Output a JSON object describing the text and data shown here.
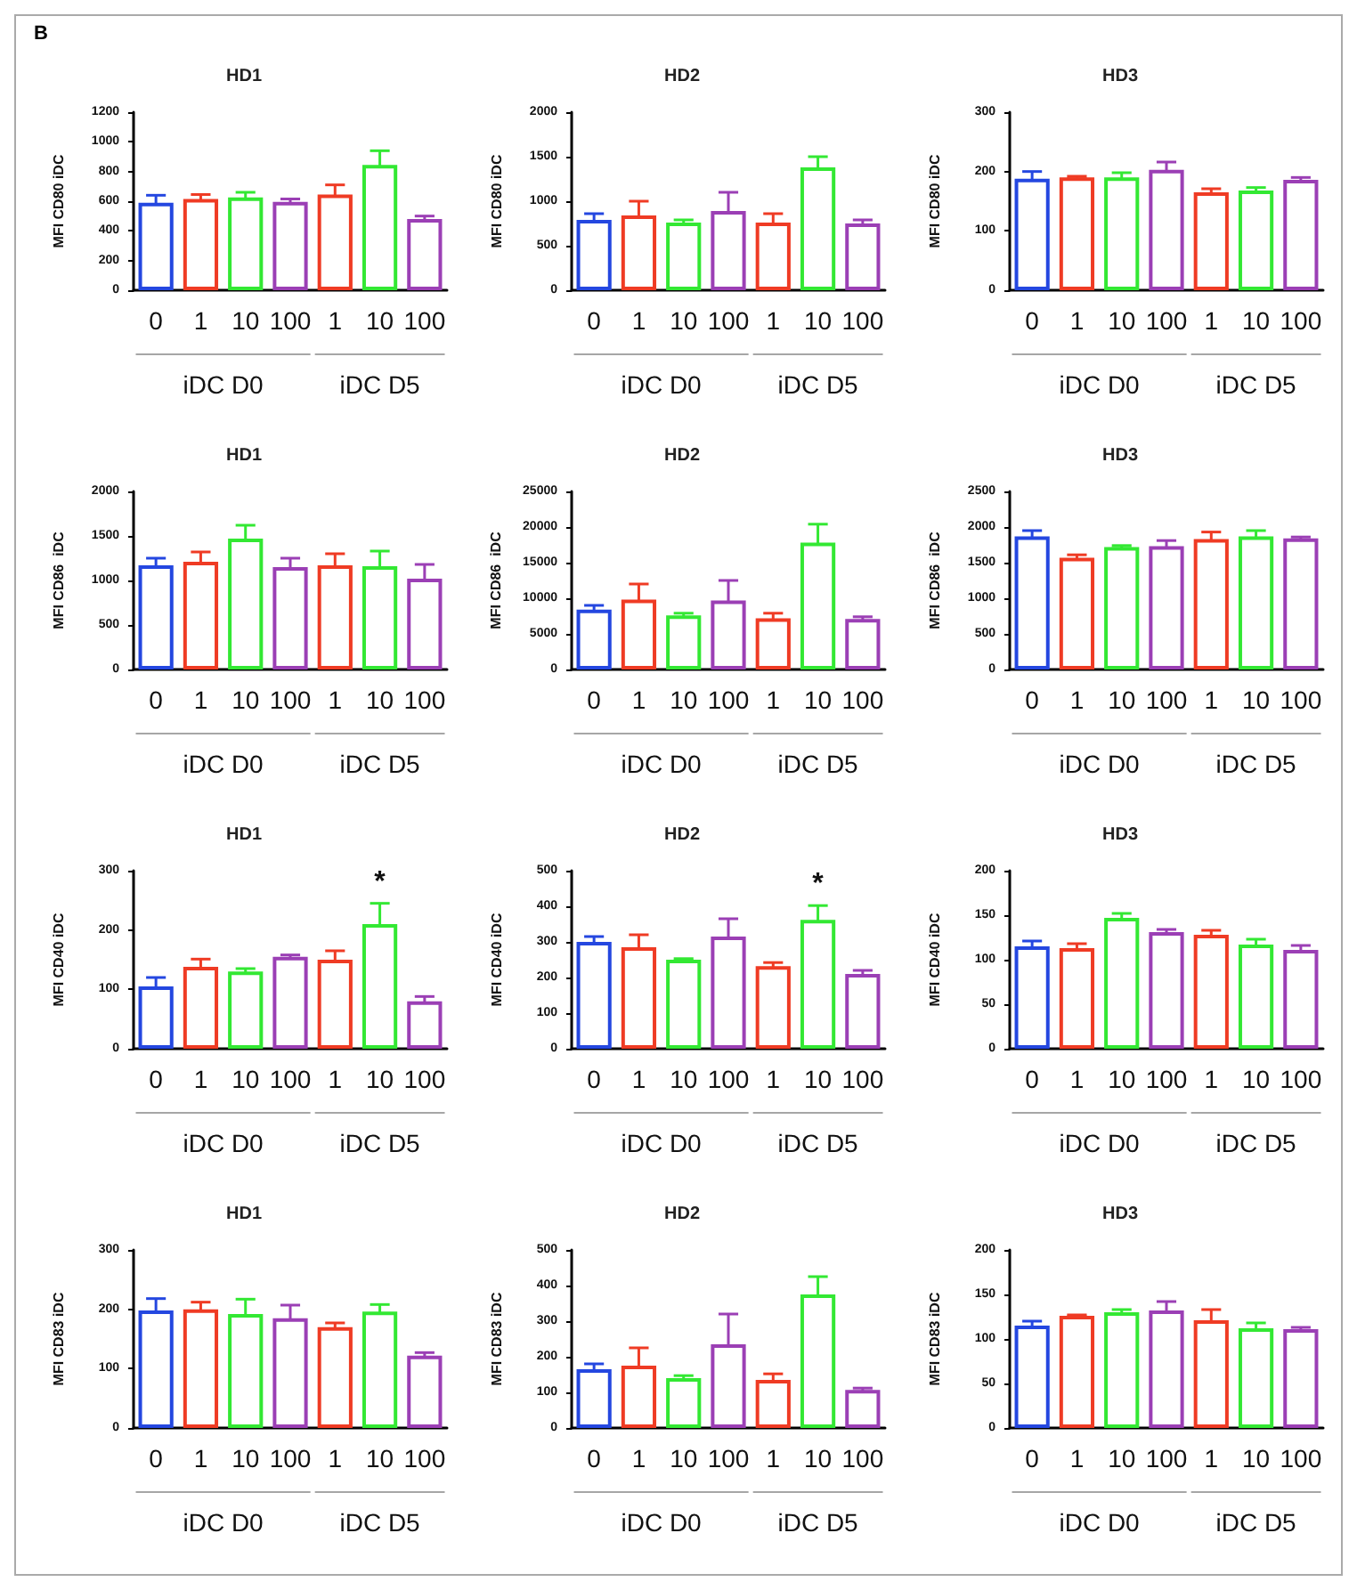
{
  "chart_data": [
    {
      "type": "other",
      "title": "B"
    },
    {
      "type": "bar",
      "title": "HD1",
      "ylabel": "MFI CD80 iDC",
      "categories": [
        "0",
        "1",
        "10",
        "100",
        "1",
        "10",
        "100"
      ],
      "colors": [
        "#2447e0",
        "#ef3b24",
        "#33e833",
        "#9b3fb5",
        "#ef3b24",
        "#33e833",
        "#9b3fb5"
      ],
      "values": [
        590,
        615,
        625,
        595,
        645,
        845,
        480
      ],
      "errors": [
        50,
        30,
        35,
        20,
        65,
        95,
        20
      ],
      "ylim": [
        0,
        1200
      ],
      "yticks": [
        0,
        200,
        400,
        600,
        800,
        1000,
        1200
      ],
      "annotations": [
        "iDC D0",
        "iDC D5"
      ]
    },
    {
      "type": "bar",
      "title": "HD2",
      "ylabel": "MFI CD80 iDC",
      "categories": [
        "0",
        "1",
        "10",
        "100",
        "1",
        "10",
        "100"
      ],
      "colors": [
        "#2447e0",
        "#ef3b24",
        "#33e833",
        "#9b3fb5",
        "#ef3b24",
        "#33e833",
        "#9b3fb5"
      ],
      "values": [
        790,
        840,
        760,
        890,
        760,
        1380,
        750
      ],
      "errors": [
        70,
        160,
        30,
        210,
        100,
        120,
        40
      ],
      "ylim": [
        0,
        2000
      ],
      "yticks": [
        0,
        500,
        1000,
        1500,
        2000
      ],
      "annotations": [
        "iDC D0",
        "iDC D5"
      ]
    },
    {
      "type": "bar",
      "title": "HD3",
      "ylabel": "MFI CD80 iDC",
      "categories": [
        "0",
        "1",
        "10",
        "100",
        "1",
        "10",
        "100"
      ],
      "colors": [
        "#2447e0",
        "#ef3b24",
        "#33e833",
        "#9b3fb5",
        "#ef3b24",
        "#33e833",
        "#9b3fb5"
      ],
      "values": [
        188,
        190,
        190,
        203,
        165,
        168,
        186
      ],
      "errors": [
        12,
        2,
        8,
        13,
        6,
        5,
        4
      ],
      "ylim": [
        0,
        300
      ],
      "yticks": [
        0,
        100,
        200,
        300
      ],
      "annotations": [
        "iDC D0",
        "iDC D5"
      ]
    },
    {
      "type": "bar",
      "title": "HD1",
      "ylabel": "MFI CD86  iDC",
      "categories": [
        "0",
        "1",
        "10",
        "100",
        "1",
        "10",
        "100"
      ],
      "colors": [
        "#2447e0",
        "#ef3b24",
        "#33e833",
        "#9b3fb5",
        "#ef3b24",
        "#33e833",
        "#9b3fb5"
      ],
      "values": [
        1170,
        1210,
        1470,
        1150,
        1170,
        1160,
        1020
      ],
      "errors": [
        80,
        110,
        150,
        100,
        130,
        170,
        160
      ],
      "ylim": [
        0,
        2000
      ],
      "yticks": [
        0,
        500,
        1000,
        1500,
        2000
      ],
      "annotations": [
        "iDC D0",
        "iDC D5"
      ]
    },
    {
      "type": "bar",
      "title": "HD2",
      "ylabel": "MFI CD86  iDC",
      "categories": [
        "0",
        "1",
        "10",
        "100",
        "1",
        "10",
        "100"
      ],
      "colors": [
        "#2447e0",
        "#ef3b24",
        "#33e833",
        "#9b3fb5",
        "#ef3b24",
        "#33e833",
        "#9b3fb5"
      ],
      "values": [
        8400,
        9800,
        7600,
        9700,
        7200,
        17800,
        7100
      ],
      "errors": [
        600,
        2200,
        300,
        2800,
        700,
        2600,
        300
      ],
      "ylim": [
        0,
        25000
      ],
      "yticks": [
        0,
        5000,
        10000,
        15000,
        20000,
        25000
      ],
      "annotations": [
        "iDC D0",
        "iDC D5"
      ]
    },
    {
      "type": "bar",
      "title": "HD3",
      "ylabel": "MFI CD86  iDC",
      "categories": [
        "0",
        "1",
        "10",
        "100",
        "1",
        "10",
        "100"
      ],
      "colors": [
        "#2447e0",
        "#ef3b24",
        "#33e833",
        "#9b3fb5",
        "#ef3b24",
        "#33e833",
        "#9b3fb5"
      ],
      "values": [
        1870,
        1570,
        1720,
        1730,
        1830,
        1870,
        1840
      ],
      "errors": [
        80,
        40,
        20,
        80,
        100,
        80,
        20
      ],
      "ylim": [
        0,
        2500
      ],
      "yticks": [
        0,
        500,
        1000,
        1500,
        2000,
        2500
      ],
      "annotations": [
        "iDC D0",
        "iDC D5"
      ]
    },
    {
      "type": "bar",
      "title": "HD1",
      "ylabel": "MFI CD40 iDC",
      "categories": [
        "0",
        "1",
        "10",
        "100",
        "1",
        "10",
        "100"
      ],
      "colors": [
        "#2447e0",
        "#ef3b24",
        "#33e833",
        "#9b3fb5",
        "#ef3b24",
        "#33e833",
        "#9b3fb5"
      ],
      "values": [
        105,
        138,
        130,
        155,
        150,
        210,
        80
      ],
      "errors": [
        15,
        13,
        5,
        3,
        15,
        35,
        8
      ],
      "value_labels": [
        null,
        null,
        null,
        null,
        null,
        "*",
        null
      ],
      "ylim": [
        0,
        300
      ],
      "yticks": [
        0,
        100,
        200,
        300
      ],
      "annotations": [
        "iDC D0",
        "iDC D5"
      ]
    },
    {
      "type": "bar",
      "title": "HD2",
      "ylabel": "MFI CD40 iDC",
      "categories": [
        "0",
        "1",
        "10",
        "100",
        "1",
        "10",
        "100"
      ],
      "colors": [
        "#2447e0",
        "#ef3b24",
        "#33e833",
        "#9b3fb5",
        "#ef3b24",
        "#33e833",
        "#9b3fb5"
      ],
      "values": [
        300,
        285,
        250,
        315,
        232,
        362,
        210
      ],
      "errors": [
        15,
        35,
        3,
        50,
        10,
        40,
        10
      ],
      "value_labels": [
        null,
        null,
        null,
        null,
        null,
        "*",
        null
      ],
      "ylim": [
        0,
        500
      ],
      "yticks": [
        0,
        100,
        200,
        300,
        400,
        500
      ],
      "annotations": [
        "iDC D0",
        "iDC D5"
      ]
    },
    {
      "type": "bar",
      "title": "HD3",
      "ylabel": "MFI CD40 iDC",
      "categories": [
        "0",
        "1",
        "10",
        "100",
        "1",
        "10",
        "100"
      ],
      "colors": [
        "#2447e0",
        "#ef3b24",
        "#33e833",
        "#9b3fb5",
        "#ef3b24",
        "#33e833",
        "#9b3fb5"
      ],
      "values": [
        115,
        113,
        147,
        131,
        128,
        117,
        111
      ],
      "errors": [
        6,
        5,
        5,
        3,
        5,
        6,
        5
      ],
      "ylim": [
        0,
        200
      ],
      "yticks": [
        0,
        50,
        100,
        150,
        200
      ],
      "annotations": [
        "iDC D0",
        "iDC D5"
      ]
    },
    {
      "type": "bar",
      "title": "HD1",
      "ylabel": "MFI CD83 iDC",
      "categories": [
        "0",
        "1",
        "10",
        "100",
        "1",
        "10",
        "100"
      ],
      "colors": [
        "#2447e0",
        "#ef3b24",
        "#33e833",
        "#9b3fb5",
        "#ef3b24",
        "#33e833",
        "#9b3fb5"
      ],
      "values": [
        198,
        200,
        192,
        185,
        170,
        196,
        122
      ],
      "errors": [
        20,
        12,
        25,
        22,
        7,
        12,
        5
      ],
      "ylim": [
        0,
        300
      ],
      "yticks": [
        0,
        100,
        200,
        300
      ],
      "annotations": [
        "iDC D0",
        "iDC D5"
      ]
    },
    {
      "type": "bar",
      "title": "HD2",
      "ylabel": "MFI CD83 iDC",
      "categories": [
        "0",
        "1",
        "10",
        "100",
        "1",
        "10",
        "100"
      ],
      "colors": [
        "#2447e0",
        "#ef3b24",
        "#33e833",
        "#9b3fb5",
        "#ef3b24",
        "#33e833",
        "#9b3fb5"
      ],
      "values": [
        165,
        175,
        140,
        235,
        135,
        375,
        107
      ],
      "errors": [
        15,
        50,
        7,
        85,
        17,
        50,
        5
      ],
      "ylim": [
        0,
        500
      ],
      "yticks": [
        0,
        100,
        200,
        300,
        400,
        500
      ],
      "annotations": [
        "iDC D0",
        "iDC D5"
      ]
    },
    {
      "type": "bar",
      "title": "HD3",
      "ylabel": "MFI CD83 iDC",
      "categories": [
        "0",
        "1",
        "10",
        "100",
        "1",
        "10",
        "100"
      ],
      "colors": [
        "#2447e0",
        "#ef3b24",
        "#33e833",
        "#9b3fb5",
        "#ef3b24",
        "#33e833",
        "#9b3fb5"
      ],
      "values": [
        115,
        126,
        130,
        132,
        121,
        112,
        111
      ],
      "errors": [
        5,
        1,
        3,
        10,
        12,
        6,
        2
      ],
      "ylim": [
        0,
        200
      ],
      "yticks": [
        0,
        50,
        100,
        150,
        200
      ],
      "annotations": [
        "iDC D0",
        "iDC D5"
      ]
    }
  ]
}
